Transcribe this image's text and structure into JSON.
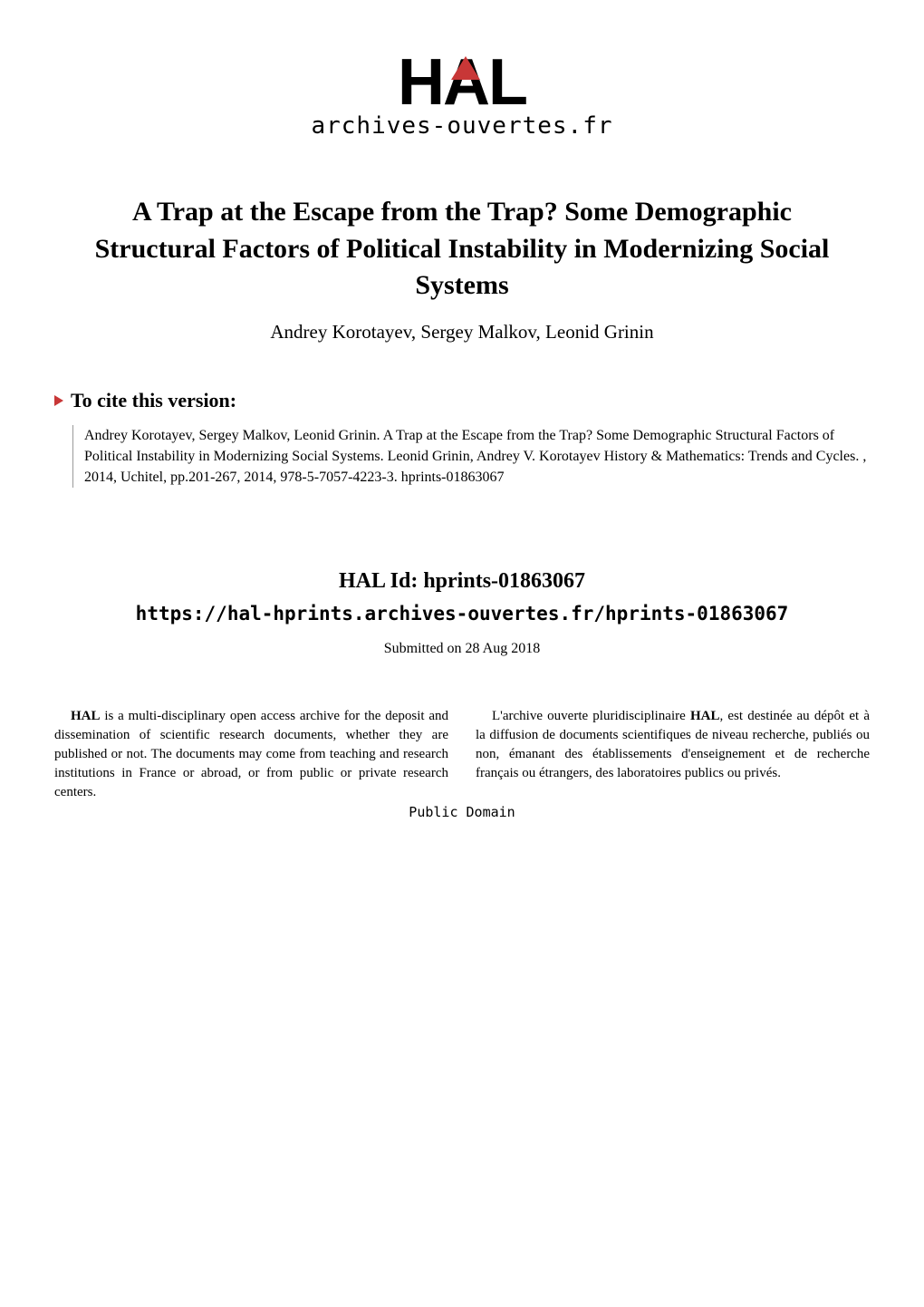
{
  "logo": {
    "text_h": "H",
    "text_a": "A",
    "text_l": "L",
    "subtitle": "archives-ouvertes.fr",
    "accent_color": "#c83737"
  },
  "title": "A Trap at the Escape from the Trap? Some Demographic Structural Factors of Political Instability in Modernizing Social Systems",
  "authors": "Andrey Korotayev, Sergey Malkov, Leonid Grinin",
  "cite": {
    "heading": "To cite this version:",
    "body": "Andrey Korotayev, Sergey Malkov, Leonid Grinin. A Trap at the Escape from the Trap? Some Demographic Structural Factors of Political Instability in Modernizing Social Systems. Leonid Grinin, Andrey V. Korotayev History & Mathematics: Trends and Cycles. , 2014, Uchitel, pp.201-267, 2014, 978-5-7057-4223-3. hprints-01863067"
  },
  "halid": {
    "heading": "HAL Id: hprints-01863067",
    "url": "https://hal-hprints.archives-ouvertes.fr/hprints-01863067"
  },
  "submitted": "Submitted on 28 Aug 2018",
  "columns": {
    "left": "HAL is a multi-disciplinary open access archive for the deposit and dissemination of scientific research documents, whether they are published or not. The documents may come from teaching and research institutions in France or abroad, or from public or private research centers.",
    "right": "L'archive ouverte pluridisciplinaire HAL, est destinée au dépôt et à la diffusion de documents scientifiques de niveau recherche, publiés ou non, émanant des établissements d'enseignement et de recherche français ou étrangers, des laboratoires publics ou privés."
  },
  "license": "Public Domain",
  "styling": {
    "background_color": "#ffffff",
    "text_color": "#000000",
    "accent_color": "#c83737",
    "border_color": "#999999",
    "title_fontsize": 30,
    "authors_fontsize": 21,
    "cite_heading_fontsize": 22,
    "cite_body_fontsize": 16,
    "halid_fontsize": 24,
    "url_fontsize": 21,
    "submitted_fontsize": 16,
    "columns_fontsize": 15,
    "logo_fontsize": 72,
    "logo_subtitle_fontsize": 26
  }
}
